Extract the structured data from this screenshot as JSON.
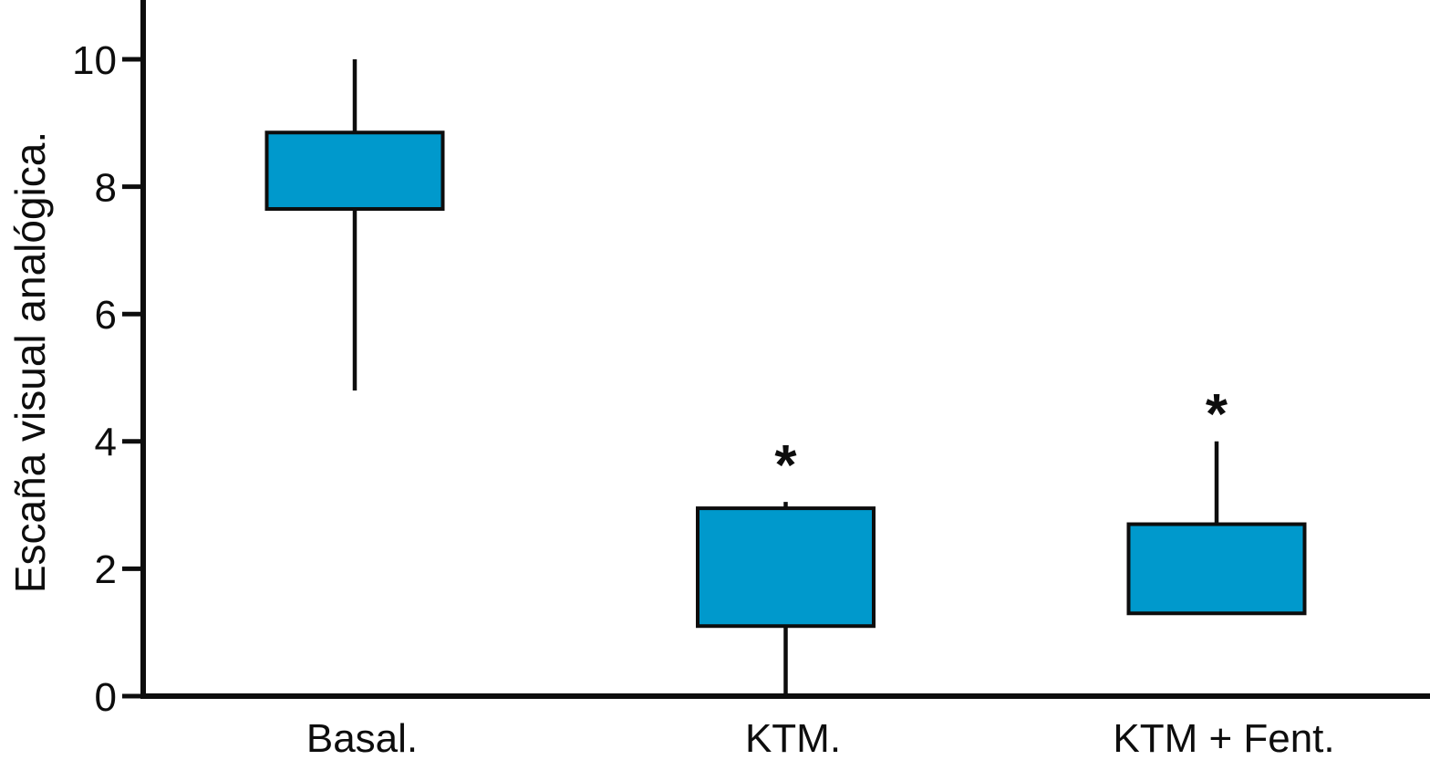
{
  "figure": {
    "background": "#ffffff",
    "ink_color": "#0d0d0d",
    "box_fill_color": "#0099cc"
  },
  "chart_data": {
    "type": "boxplot",
    "title": "",
    "xlabel": "",
    "ylabel": "Escaña visual analógica.",
    "ylim": [
      0,
      10.9
    ],
    "yticks": [
      0,
      2,
      4,
      6,
      8,
      10
    ],
    "ytick_labels": [
      "0",
      "2",
      "4",
      "6",
      "8",
      "10"
    ],
    "grid": false,
    "legend": "none",
    "categories": [
      "Basal.",
      "KTM.",
      "KTM + Fent."
    ],
    "series": [
      {
        "name": "Basal.",
        "whisker_low": 4.8,
        "q1": 7.65,
        "median": null,
        "q3": 8.85,
        "whisker_high": 10.0,
        "annotation": "",
        "annotation_y": null
      },
      {
        "name": "KTM.",
        "whisker_low": 0.0,
        "q1": 1.1,
        "median": null,
        "q3": 2.95,
        "whisker_high": 3.05,
        "annotation": "*",
        "annotation_y": 3.75
      },
      {
        "name": "KTM + Fent.",
        "whisker_low": null,
        "q1": 1.3,
        "median": null,
        "q3": 2.7,
        "whisker_high": 4.0,
        "annotation": "*",
        "annotation_y": 4.55
      }
    ]
  }
}
